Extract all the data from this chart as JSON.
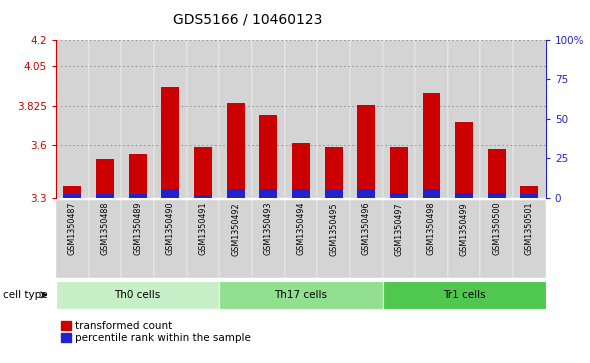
{
  "title": "GDS5166 / 10460123",
  "samples": [
    "GSM1350487",
    "GSM1350488",
    "GSM1350489",
    "GSM1350490",
    "GSM1350491",
    "GSM1350492",
    "GSM1350493",
    "GSM1350494",
    "GSM1350495",
    "GSM1350496",
    "GSM1350497",
    "GSM1350498",
    "GSM1350499",
    "GSM1350500",
    "GSM1350501"
  ],
  "red_values": [
    3.37,
    3.52,
    3.55,
    3.93,
    3.59,
    3.84,
    3.77,
    3.61,
    3.59,
    3.83,
    3.59,
    3.9,
    3.73,
    3.58,
    3.37
  ],
  "blue_values": [
    0.022,
    0.022,
    0.022,
    0.05,
    0.015,
    0.05,
    0.05,
    0.05,
    0.045,
    0.05,
    0.03,
    0.05,
    0.03,
    0.03,
    0.022
  ],
  "cell_groups": [
    {
      "label": "Th0 cells",
      "start": 0,
      "end": 4,
      "color": "#c8f0c8"
    },
    {
      "label": "Th17 cells",
      "start": 5,
      "end": 9,
      "color": "#90e090"
    },
    {
      "label": "Tr1 cells",
      "start": 10,
      "end": 14,
      "color": "#50c850"
    }
  ],
  "ymin": 3.3,
  "ymax": 4.2,
  "yticks": [
    3.3,
    3.6,
    3.825,
    4.05,
    4.2
  ],
  "ytick_labels": [
    "3.3",
    "3.6",
    "3.825",
    "4.05",
    "4.2"
  ],
  "right_yticks": [
    0,
    25,
    50,
    75,
    100
  ],
  "right_ytick_labels": [
    "0",
    "25",
    "50",
    "75",
    "100%"
  ],
  "bar_color_red": "#cc0000",
  "bar_color_blue": "#2222cc",
  "bar_width": 0.55,
  "grid_color": "#888888",
  "bg_plot": "#ffffff",
  "col_bg": "#d4d4d4",
  "left_axis_color": "#cc0000",
  "right_axis_color": "#2222cc",
  "cell_type_label": "cell type",
  "legend_red_label": "transformed count",
  "legend_blue_label": "percentile rank within the sample",
  "title_fontsize": 10,
  "tick_fontsize": 7.5,
  "bar_bottom": 3.3
}
